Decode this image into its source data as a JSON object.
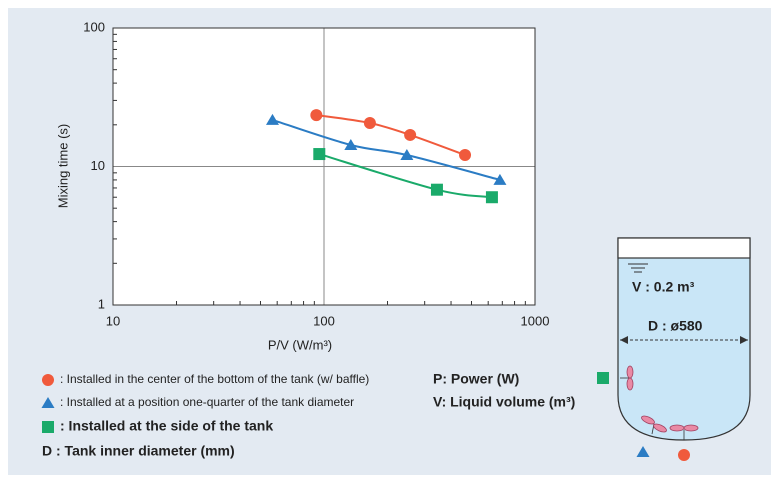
{
  "chart_data": {
    "type": "scatter",
    "x_label": "P/V (W/m³)",
    "y_label": "Mixing time (s)",
    "xscale": "log",
    "yscale": "log",
    "xlim": [
      10,
      1000
    ],
    "ylim": [
      1,
      100
    ],
    "xticks": [
      10,
      100,
      1000
    ],
    "yticks": [
      1,
      10,
      100
    ],
    "grid": true,
    "series": [
      {
        "name": ": Installed in the center of the bottom of the tank (w/ baffle)",
        "color": "#f05a3c",
        "marker": "circle",
        "x": [
          92,
          165,
          256,
          466
        ],
        "values": [
          23.5,
          20.6,
          16.9,
          12.1
        ]
      },
      {
        "name": ": Installed at a position one-quarter of the tank diameter",
        "color": "#2b7cc4",
        "marker": "triangle",
        "x": [
          57,
          134,
          247,
          682
        ],
        "values": [
          21.7,
          14.3,
          12.1,
          8.0
        ]
      },
      {
        "name": ": Installed at the side of the tank",
        "color": "#1aaa6a",
        "marker": "square",
        "x": [
          95,
          343,
          625
        ],
        "values": [
          12.3,
          6.8,
          6.0
        ]
      }
    ],
    "notes": [
      "P: Power (W)",
      "V: Liquid volume (m³)",
      "D : Tank inner diameter (mm)"
    ]
  },
  "diagram": {
    "volume": "V : 0.2 m³",
    "diameter": "D :  ø580"
  }
}
